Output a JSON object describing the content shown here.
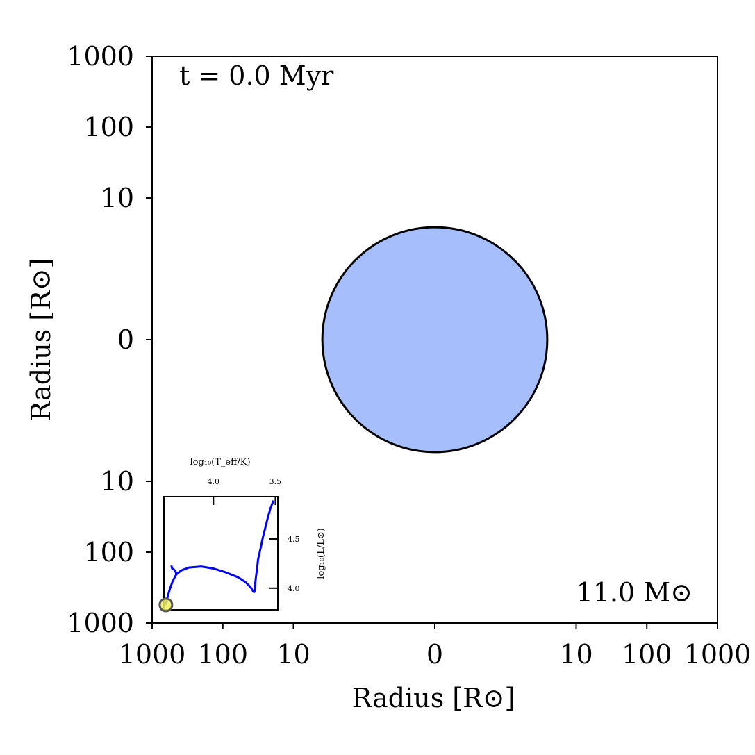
{
  "chart_data": [
    {
      "type": "scatter",
      "xlabel": "Radius [R⊙]",
      "ylabel": "Radius [R⊙]",
      "x_ticks": [
        "1000",
        "100",
        "10",
        "0",
        "10",
        "100",
        "1000"
      ],
      "y_ticks": [
        "1000",
        "100",
        "10",
        "0",
        "10",
        "100",
        "1000"
      ],
      "xlim": [
        -1000,
        1000
      ],
      "ylim": [
        -1000,
        1000
      ],
      "scale": "symmetric-log",
      "grid": false,
      "time_label": "t = 0.0 Myr",
      "mass_label": "11.0 M⊙",
      "star": {
        "x": 0,
        "y": 0,
        "radius": 3.9,
        "fill_color": "#a6bffc",
        "edge_color": "#000000"
      }
    },
    {
      "type": "line",
      "title": "",
      "xlabel": "log₁₀(T_eff/K)",
      "ylabel": "log₁₀(L/L⊙)",
      "x_ticks": [
        "4.0",
        "3.5"
      ],
      "y_ticks": [
        "4.5",
        "4.0"
      ],
      "x_tick_values": [
        4.0,
        3.5
      ],
      "y_tick_values": [
        4.5,
        4.0
      ],
      "xlim": [
        4.4,
        3.48
      ],
      "ylim": [
        3.78,
        4.93
      ],
      "xaxis_position": "top",
      "yaxis_position": "right",
      "grid": false,
      "series": [
        {
          "color": "#0000ff",
          "x": [
            4.384,
            4.375,
            4.355,
            4.33,
            4.3,
            4.26,
            4.2,
            4.1,
            4.0,
            3.9,
            3.8,
            3.74,
            3.7,
            3.68,
            3.672,
            3.668,
            3.665,
            3.662,
            3.655,
            3.648,
            3.64,
            3.62,
            3.6,
            3.58,
            3.56,
            3.54,
            3.525,
            3.515
          ],
          "y": [
            3.83,
            3.89,
            3.98,
            4.07,
            4.14,
            4.18,
            4.21,
            4.22,
            4.2,
            4.16,
            4.11,
            4.06,
            4.01,
            3.97,
            3.96,
            3.97,
            4.01,
            4.06,
            4.13,
            4.2,
            4.29,
            4.4,
            4.52,
            4.62,
            4.72,
            4.81,
            4.86,
            4.89
          ]
        },
        {
          "color": "#0000ff",
          "x": [
            4.3,
            4.306,
            4.32,
            4.334,
            4.34
          ],
          "y": [
            4.14,
            4.17,
            4.19,
            4.2,
            4.23
          ]
        }
      ],
      "current_point": {
        "x": 4.384,
        "y": 3.83,
        "fill_color": "#f0f060",
        "edge_color": "#555555"
      }
    }
  ]
}
